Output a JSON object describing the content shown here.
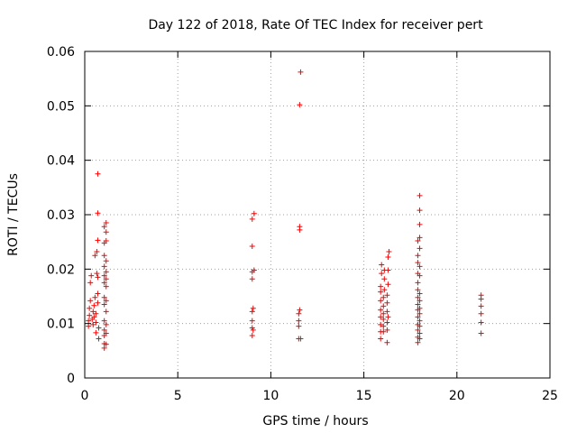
{
  "chart_data": {
    "type": "scatter",
    "title": "Day 122 of 2018, Rate Of TEC Index for receiver pert",
    "xlabel": "GPS time / hours",
    "ylabel": "ROTI / TECUs",
    "xlim": [
      0,
      25
    ],
    "ylim": [
      0,
      0.06
    ],
    "xticks": [
      0,
      5,
      10,
      15,
      20,
      25
    ],
    "xtick_labels": [
      "0",
      "5",
      "10",
      "15",
      "20",
      "25"
    ],
    "yticks": [
      0,
      0.01,
      0.02,
      0.03,
      0.04,
      0.05,
      0.06
    ],
    "ytick_labels": [
      "0",
      "0.01",
      "0.02",
      "0.03",
      "0.04",
      "0.05",
      "0.06"
    ],
    "grid": true,
    "marker": "+",
    "color": "#ff0000",
    "series": [
      {
        "name": "ROTI",
        "points": [
          [
            0.2,
            0.0095
          ],
          [
            0.2,
            0.0105
          ],
          [
            0.25,
            0.0115
          ],
          [
            0.25,
            0.0128
          ],
          [
            0.3,
            0.0142
          ],
          [
            0.3,
            0.0175
          ],
          [
            0.35,
            0.0188
          ],
          [
            0.4,
            0.0108
          ],
          [
            0.45,
            0.0098
          ],
          [
            0.45,
            0.0122
          ],
          [
            0.5,
            0.0112
          ],
          [
            0.5,
            0.0133
          ],
          [
            0.55,
            0.0148
          ],
          [
            0.55,
            0.0225
          ],
          [
            0.6,
            0.0083
          ],
          [
            0.6,
            0.0102
          ],
          [
            0.6,
            0.0118
          ],
          [
            0.65,
            0.0192
          ],
          [
            0.65,
            0.0232
          ],
          [
            0.7,
            0.0375
          ],
          [
            0.7,
            0.0303
          ],
          [
            0.7,
            0.0253
          ],
          [
            0.7,
            0.0185
          ],
          [
            0.7,
            0.0155
          ],
          [
            0.7,
            0.0138
          ],
          [
            0.75,
            0.0092
          ],
          [
            0.75,
            0.0072
          ],
          [
            1.05,
            0.0055
          ],
          [
            1.05,
            0.0063
          ],
          [
            1.05,
            0.0078
          ],
          [
            1.05,
            0.0088
          ],
          [
            1.05,
            0.0105
          ],
          [
            1.05,
            0.0135
          ],
          [
            1.05,
            0.0148
          ],
          [
            1.05,
            0.0175
          ],
          [
            1.05,
            0.0188
          ],
          [
            1.05,
            0.0205
          ],
          [
            1.05,
            0.0225
          ],
          [
            1.05,
            0.0248
          ],
          [
            1.05,
            0.0278
          ],
          [
            1.15,
            0.0062
          ],
          [
            1.15,
            0.0082
          ],
          [
            1.15,
            0.0098
          ],
          [
            1.15,
            0.0122
          ],
          [
            1.15,
            0.0142
          ],
          [
            1.15,
            0.0168
          ],
          [
            1.15,
            0.0182
          ],
          [
            1.15,
            0.0195
          ],
          [
            1.15,
            0.0215
          ],
          [
            1.15,
            0.0252
          ],
          [
            1.15,
            0.0268
          ],
          [
            1.15,
            0.0285
          ],
          [
            9.0,
            0.0078
          ],
          [
            9.0,
            0.0092
          ],
          [
            9.0,
            0.0105
          ],
          [
            9.0,
            0.0122
          ],
          [
            9.0,
            0.0182
          ],
          [
            9.0,
            0.0195
          ],
          [
            9.0,
            0.0242
          ],
          [
            9.0,
            0.0292
          ],
          [
            9.05,
            0.0088
          ],
          [
            9.05,
            0.0128
          ],
          [
            9.1,
            0.0198
          ],
          [
            9.1,
            0.0302
          ],
          [
            11.5,
            0.0072
          ],
          [
            11.5,
            0.0095
          ],
          [
            11.5,
            0.0105
          ],
          [
            11.5,
            0.0118
          ],
          [
            11.55,
            0.0125
          ],
          [
            11.55,
            0.0272
          ],
          [
            11.55,
            0.0278
          ],
          [
            11.55,
            0.0502
          ],
          [
            11.6,
            0.0562
          ],
          [
            11.6,
            0.0072
          ],
          [
            15.9,
            0.0072
          ],
          [
            15.9,
            0.0085
          ],
          [
            15.9,
            0.0098
          ],
          [
            15.9,
            0.0112
          ],
          [
            15.9,
            0.0125
          ],
          [
            15.9,
            0.0142
          ],
          [
            15.9,
            0.0158
          ],
          [
            15.9,
            0.0168
          ],
          [
            15.95,
            0.0192
          ],
          [
            15.95,
            0.0208
          ],
          [
            16.05,
            0.0085
          ],
          [
            16.05,
            0.0095
          ],
          [
            16.05,
            0.0108
          ],
          [
            16.05,
            0.0118
          ],
          [
            16.05,
            0.0132
          ],
          [
            16.05,
            0.0148
          ],
          [
            16.1,
            0.0162
          ],
          [
            16.1,
            0.0198
          ],
          [
            16.1,
            0.0182
          ],
          [
            16.25,
            0.0065
          ],
          [
            16.25,
            0.0088
          ],
          [
            16.25,
            0.0102
          ],
          [
            16.25,
            0.0122
          ],
          [
            16.25,
            0.0138
          ],
          [
            16.25,
            0.0152
          ],
          [
            16.3,
            0.0172
          ],
          [
            16.3,
            0.0198
          ],
          [
            16.3,
            0.0222
          ],
          [
            16.35,
            0.0232
          ],
          [
            16.3,
            0.0112
          ],
          [
            17.9,
            0.0065
          ],
          [
            17.9,
            0.0075
          ],
          [
            17.9,
            0.0088
          ],
          [
            17.9,
            0.0098
          ],
          [
            17.9,
            0.0112
          ],
          [
            17.9,
            0.0125
          ],
          [
            17.9,
            0.0135
          ],
          [
            17.9,
            0.0148
          ],
          [
            17.9,
            0.0162
          ],
          [
            17.9,
            0.0175
          ],
          [
            17.9,
            0.0192
          ],
          [
            17.9,
            0.0212
          ],
          [
            17.9,
            0.0225
          ],
          [
            17.9,
            0.0252
          ],
          [
            18.0,
            0.0072
          ],
          [
            18.0,
            0.0082
          ],
          [
            18.0,
            0.0095
          ],
          [
            18.0,
            0.0105
          ],
          [
            18.0,
            0.0118
          ],
          [
            18.0,
            0.0128
          ],
          [
            18.0,
            0.0142
          ],
          [
            18.0,
            0.0155
          ],
          [
            18.0,
            0.0188
          ],
          [
            18.0,
            0.0205
          ],
          [
            18.0,
            0.0238
          ],
          [
            18.0,
            0.0258
          ],
          [
            18.0,
            0.0282
          ],
          [
            18.0,
            0.0308
          ],
          [
            18.0,
            0.0335
          ],
          [
            21.3,
            0.0082
          ],
          [
            21.3,
            0.0102
          ],
          [
            21.3,
            0.0118
          ],
          [
            21.3,
            0.0132
          ],
          [
            21.3,
            0.0145
          ],
          [
            21.3,
            0.0152
          ]
        ]
      }
    ]
  }
}
